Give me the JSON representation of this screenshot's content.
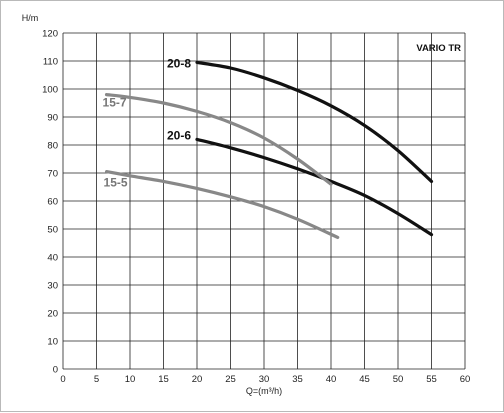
{
  "chart_data": {
    "type": "line",
    "brand_label": "VARIO TR",
    "ylabel": "H/m",
    "xlabel": "Q=(m³/h)",
    "xlim": [
      0,
      60
    ],
    "ylim": [
      0,
      120
    ],
    "x_ticks": [
      0,
      5,
      10,
      15,
      20,
      25,
      30,
      35,
      40,
      45,
      50,
      55,
      60
    ],
    "y_ticks": [
      0,
      10,
      20,
      30,
      40,
      50,
      60,
      70,
      80,
      90,
      100,
      110,
      120
    ],
    "grid": true,
    "series": [
      {
        "name": "20-8",
        "color": "#111111",
        "x": [
          20,
          25,
          30,
          35,
          40,
          45,
          50,
          55
        ],
        "y": [
          109.5,
          107.5,
          104,
          99.5,
          94,
          87,
          78,
          67
        ]
      },
      {
        "name": "20-6",
        "color": "#111111",
        "x": [
          20,
          25,
          30,
          35,
          40,
          45,
          50,
          55
        ],
        "y": [
          82,
          79,
          75.5,
          71.5,
          67,
          62,
          55.5,
          48
        ]
      },
      {
        "name": "15-7",
        "color": "#888888",
        "x": [
          6.5,
          10,
          15,
          20,
          25,
          30,
          35,
          40
        ],
        "y": [
          98,
          97,
          95,
          92,
          88,
          82.5,
          75,
          66
        ]
      },
      {
        "name": "15-5",
        "color": "#888888",
        "x": [
          6.5,
          10,
          15,
          20,
          25,
          30,
          35,
          41
        ],
        "y": [
          70.5,
          69,
          67,
          64.5,
          61.5,
          58,
          53.5,
          47
        ]
      }
    ]
  }
}
